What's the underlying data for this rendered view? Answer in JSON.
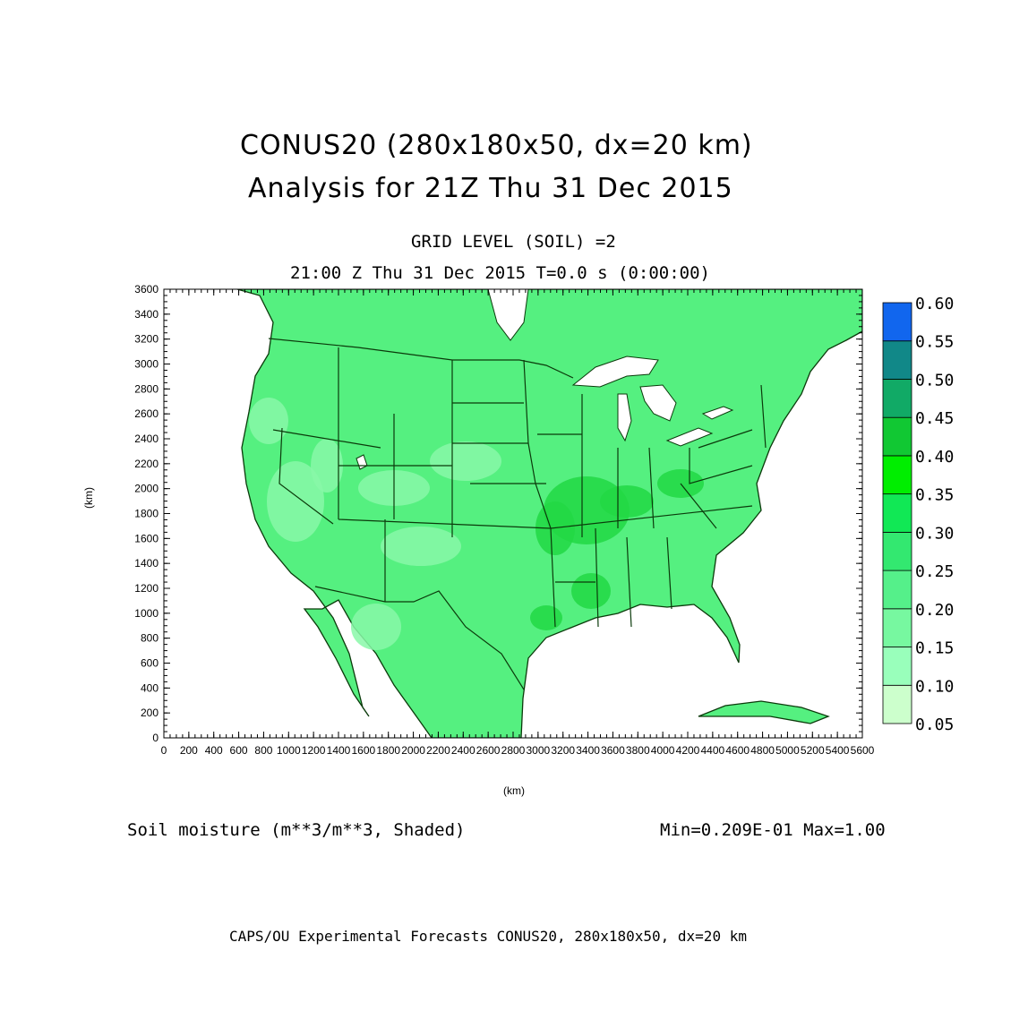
{
  "title": {
    "line1": "CONUS20 (280x180x50, dx=20 km)",
    "line2": "Analysis for 21Z Thu 31 Dec 2015"
  },
  "subtitle": {
    "line1": "GRID LEVEL (SOIL) =2",
    "line2": "21:00 Z Thu 31 Dec 2015   T=0.0 s (0:00:00)"
  },
  "axes": {
    "xlabel": "(km)",
    "ylabel": "(km)",
    "x_ticks": [
      "0",
      "200",
      "400",
      "600",
      "800",
      "1000",
      "1200",
      "1400",
      "1600",
      "1800",
      "2000",
      "2200",
      "2400",
      "2600",
      "2800",
      "3000",
      "3200",
      "3400",
      "3600",
      "3800",
      "4000",
      "4200",
      "4400",
      "4600",
      "4800",
      "5000",
      "5200",
      "5400",
      "5600"
    ],
    "y_ticks": [
      "0",
      "200",
      "400",
      "600",
      "800",
      "1000",
      "1200",
      "1400",
      "1600",
      "1800",
      "2000",
      "2200",
      "2400",
      "2600",
      "2800",
      "3000",
      "3200",
      "3400",
      "3600"
    ],
    "xlim": [
      0,
      5600
    ],
    "ylim": [
      0,
      3600
    ]
  },
  "colorbar": {
    "labels": [
      "0.60",
      "0.55",
      "0.50",
      "0.45",
      "0.40",
      "0.35",
      "0.30",
      "0.25",
      "0.20",
      "0.15",
      "0.10",
      "0.05"
    ],
    "colors": [
      "#ccffcc",
      "#99ffbb",
      "#77f8a0",
      "#55f08a",
      "#33e870",
      "#11e855",
      "#00ee00",
      "#11c833",
      "#11aa66",
      "#118888",
      "#1166ee"
    ]
  },
  "field": {
    "name": "Soil moisture (m**3/m**3, Shaded)",
    "minmax": "Min=0.209E-01 Max=1.00"
  },
  "footer": "CAPS/OU Experimental Forecasts  CONUS20, 280x180x50, dx=20 km",
  "map": {
    "land_color": "#55f080",
    "dry_color": "#88f8a8",
    "wet_color": "#22d844",
    "boundary_color": "#0b3a0b"
  }
}
